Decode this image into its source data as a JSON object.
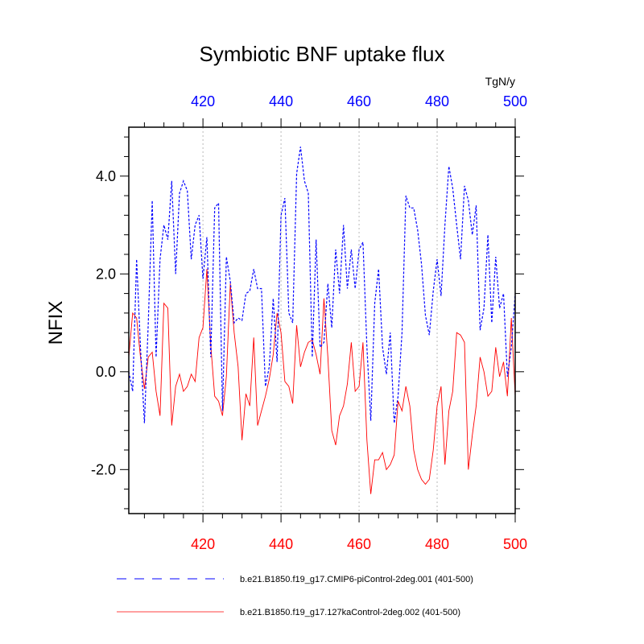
{
  "chart_data": {
    "type": "line",
    "title": "Symbiotic BNF uptake flux",
    "units": "TgN/y",
    "ylabel": "NFIX",
    "xlim": [
      401,
      500
    ],
    "ylim": [
      -2.9,
      5.0
    ],
    "yticks": [
      -2.0,
      0.0,
      2.0,
      4.0
    ],
    "ytick_labels": [
      "-2.0",
      "0.0",
      "2.0",
      "4.0"
    ],
    "xticks": [
      420,
      440,
      460,
      480,
      500
    ],
    "xtick_labels_top": [
      "420",
      "440",
      "460",
      "480",
      "500"
    ],
    "xtick_labels_bottom": [
      "420",
      "440",
      "460",
      "480",
      "500"
    ],
    "top_axis_color": "#0000ff",
    "bottom_axis_color": "#ff0000",
    "grid_x": true,
    "legend_position": "bottom",
    "x": [
      401,
      402,
      403,
      404,
      405,
      406,
      407,
      408,
      409,
      410,
      411,
      412,
      413,
      414,
      415,
      416,
      417,
      418,
      419,
      420,
      421,
      422,
      423,
      424,
      425,
      426,
      427,
      428,
      429,
      430,
      431,
      432,
      433,
      434,
      435,
      436,
      437,
      438,
      439,
      440,
      441,
      442,
      443,
      444,
      445,
      446,
      447,
      448,
      449,
      450,
      451,
      452,
      453,
      454,
      455,
      456,
      457,
      458,
      459,
      460,
      461,
      462,
      463,
      464,
      465,
      466,
      467,
      468,
      469,
      470,
      471,
      472,
      473,
      474,
      475,
      476,
      477,
      478,
      479,
      480,
      481,
      482,
      483,
      484,
      485,
      486,
      487,
      488,
      489,
      490,
      491,
      492,
      493,
      494,
      495,
      496,
      497,
      498,
      499,
      500
    ],
    "series": [
      {
        "name": "b.e21.B1850.f19_g17.CMIP6-piControl-2deg.001 (401-500)",
        "color": "#0000ff",
        "dash": "dashed",
        "values": [
          0.0,
          -0.4,
          2.3,
          0.5,
          -1.05,
          1.0,
          3.5,
          0.3,
          2.3,
          3.0,
          2.7,
          3.9,
          2.0,
          3.65,
          3.9,
          3.7,
          2.3,
          3.0,
          3.2,
          1.9,
          2.75,
          0.3,
          3.35,
          3.45,
          -0.8,
          2.35,
          1.85,
          1.0,
          1.1,
          1.05,
          1.6,
          1.65,
          2.1,
          1.7,
          1.7,
          -0.3,
          0.1,
          1.5,
          0.2,
          3.2,
          3.55,
          1.2,
          1.0,
          4.05,
          4.6,
          3.9,
          3.65,
          0.3,
          2.7,
          0.5,
          0.6,
          1.8,
          0.9,
          2.5,
          1.6,
          3.0,
          1.7,
          2.5,
          1.7,
          2.5,
          2.65,
          0.5,
          -1.0,
          1.4,
          2.1,
          0.5,
          -0.05,
          0.8,
          -1.05,
          -0.5,
          0.8,
          3.6,
          3.35,
          3.35,
          2.9,
          2.2,
          1.15,
          0.75,
          1.65,
          2.3,
          1.55,
          3.0,
          4.2,
          3.75,
          3.0,
          2.3,
          3.8,
          3.5,
          2.8,
          3.4,
          0.85,
          1.3,
          2.8,
          1.0,
          2.35,
          1.3,
          1.6,
          -0.1,
          0.5,
          1.6
        ]
      },
      {
        "name": "b.e21.B1850.f19_g17.127kaControl-2deg.002 (401-500)",
        "color": "#ff0000",
        "dash": "solid",
        "values": [
          0.3,
          1.2,
          1.1,
          0.3,
          -0.35,
          0.3,
          0.4,
          -0.4,
          -0.9,
          1.4,
          1.3,
          -1.1,
          -0.3,
          -0.05,
          -0.4,
          -0.3,
          -0.05,
          -0.2,
          0.7,
          0.9,
          2.1,
          0.55,
          -0.5,
          -0.6,
          -0.9,
          -0.1,
          1.8,
          0.8,
          0.1,
          -1.4,
          -0.45,
          -0.7,
          0.7,
          -1.1,
          -0.8,
          -0.5,
          -0.15,
          0.35,
          1.2,
          0.8,
          -0.2,
          -0.3,
          -0.65,
          0.95,
          0.1,
          0.4,
          0.6,
          0.65,
          0.35,
          -0.05,
          1.5,
          0.3,
          -1.2,
          -1.5,
          -0.9,
          -0.7,
          -0.25,
          0.6,
          -0.4,
          -0.3,
          0.6,
          -1.4,
          -2.5,
          -1.8,
          -1.8,
          -1.65,
          -2.0,
          -1.9,
          -1.7,
          -0.6,
          -0.8,
          -0.3,
          -0.7,
          -1.6,
          -2.0,
          -2.2,
          -2.3,
          -2.2,
          -1.6,
          -0.7,
          -0.3,
          -1.9,
          -0.8,
          -0.4,
          0.8,
          0.75,
          0.6,
          -2.0,
          -1.3,
          -0.7,
          0.3,
          0.0,
          -0.5,
          -0.4,
          0.5,
          -0.1,
          0.2,
          -0.5,
          1.1,
          -0.5
        ]
      }
    ]
  }
}
